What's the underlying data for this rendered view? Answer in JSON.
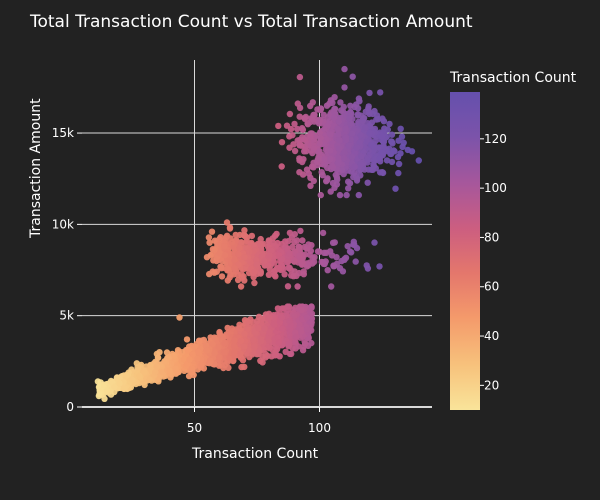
{
  "chart_data": {
    "type": "scatter",
    "title": "Total Transaction Count vs Total Transaction Amount",
    "xlabel": "Transaction Count",
    "ylabel": "Transaction Amount",
    "xlim": [
      5,
      145
    ],
    "ylim": [
      0,
      19000
    ],
    "x_ticks": [
      50,
      100
    ],
    "x_tick_labels": [
      "50",
      "100"
    ],
    "y_ticks": [
      0,
      5000,
      10000,
      15000
    ],
    "y_tick_labels": [
      "0",
      "5k",
      "10k",
      "15k"
    ],
    "grid": true,
    "colorscale": "plasma-like (yellow to purple)",
    "colorbar": {
      "title": "Transaction Count",
      "range": [
        10,
        139
      ],
      "ticks": [
        20,
        40,
        60,
        80,
        100,
        120
      ],
      "tick_labels": [
        "20",
        "40",
        "60",
        "80",
        "100",
        "120"
      ],
      "colors": [
        "#f9e49a",
        "#f7c27c",
        "#f49a6b",
        "#e4776c",
        "#cc5e80",
        "#a7579b",
        "#7b53aa",
        "#6550ad"
      ]
    },
    "clusters": [
      {
        "name_hint": "low",
        "x_range": [
          10,
          100
        ],
        "y_range": [
          500,
          5600
        ],
        "points": [
          [
            12,
            700
          ],
          [
            15,
            900
          ],
          [
            18,
            1100
          ],
          [
            20,
            1300
          ],
          [
            22,
            1000
          ],
          [
            25,
            1500
          ],
          [
            28,
            1700
          ],
          [
            30,
            1900
          ],
          [
            32,
            1500
          ],
          [
            35,
            2200
          ],
          [
            38,
            2500
          ],
          [
            40,
            2000
          ],
          [
            42,
            2800
          ],
          [
            45,
            3000
          ],
          [
            48,
            2600
          ],
          [
            50,
            3300
          ],
          [
            52,
            3600
          ],
          [
            55,
            3100
          ],
          [
            58,
            3800
          ],
          [
            60,
            4100
          ],
          [
            62,
            3500
          ],
          [
            65,
            4300
          ],
          [
            68,
            4500
          ],
          [
            70,
            4000
          ],
          [
            72,
            4600
          ],
          [
            75,
            4700
          ],
          [
            78,
            4300
          ],
          [
            80,
            4900
          ],
          [
            82,
            4500
          ],
          [
            85,
            4900
          ],
          [
            88,
            4700
          ],
          [
            90,
            5000
          ],
          [
            93,
            4800
          ],
          [
            95,
            4900
          ],
          [
            44,
            4900
          ],
          [
            47,
            3700
          ],
          [
            36,
            3000
          ],
          [
            66,
            2800
          ],
          [
            70,
            3300
          ],
          [
            56,
            2400
          ]
        ]
      },
      {
        "name_hint": "mid",
        "x_range": [
          50,
          125
        ],
        "y_range": [
          6400,
          10400
        ],
        "points": [
          [
            55,
            8200
          ],
          [
            58,
            8600
          ],
          [
            60,
            9200
          ],
          [
            62,
            8800
          ],
          [
            65,
            9000
          ],
          [
            68,
            8700
          ],
          [
            70,
            8200
          ],
          [
            72,
            8500
          ],
          [
            75,
            7800
          ],
          [
            78,
            8000
          ],
          [
            80,
            8300
          ],
          [
            82,
            7900
          ],
          [
            85,
            8100
          ],
          [
            88,
            8400
          ],
          [
            90,
            8000
          ],
          [
            92,
            8300
          ],
          [
            95,
            7700
          ],
          [
            98,
            8200
          ],
          [
            100,
            8500
          ],
          [
            105,
            8300
          ],
          [
            110,
            8100
          ],
          [
            115,
            8700
          ],
          [
            122,
            9000
          ],
          [
            63,
            10100
          ],
          [
            57,
            9600
          ],
          [
            70,
            9400
          ],
          [
            66,
            7600
          ],
          [
            74,
            7400
          ],
          [
            84,
            7600
          ],
          [
            96,
            7900
          ]
        ]
      },
      {
        "name_hint": "high",
        "x_range": [
          80,
          140
        ],
        "y_range": [
          11500,
          18500
        ],
        "points": [
          [
            85,
            14500
          ],
          [
            88,
            14200
          ],
          [
            90,
            15500
          ],
          [
            92,
            13500
          ],
          [
            95,
            14800
          ],
          [
            98,
            16000
          ],
          [
            100,
            14000
          ],
          [
            102,
            15200
          ],
          [
            105,
            13200
          ],
          [
            108,
            14600
          ],
          [
            110,
            17500
          ],
          [
            112,
            15800
          ],
          [
            115,
            14200
          ],
          [
            118,
            13000
          ],
          [
            120,
            15000
          ],
          [
            122,
            16200
          ],
          [
            125,
            14800
          ],
          [
            128,
            15500
          ],
          [
            130,
            14000
          ],
          [
            133,
            14800
          ],
          [
            137,
            14000
          ],
          [
            110,
            18500
          ],
          [
            106,
            12000
          ],
          [
            115,
            12500
          ],
          [
            103,
            16500
          ],
          [
            95,
            13000
          ],
          [
            127,
            13500
          ],
          [
            120,
            17200
          ],
          [
            87,
            15400
          ],
          [
            113,
            13700
          ]
        ]
      }
    ]
  }
}
